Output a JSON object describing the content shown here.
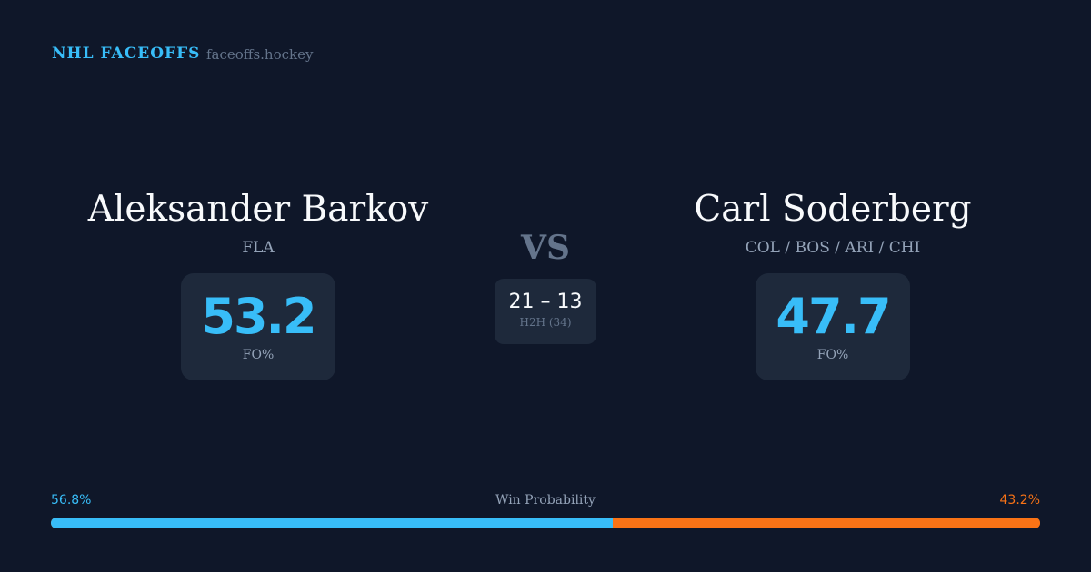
{
  "header": {
    "brand": "NHL FACEOFFS",
    "domain": "faceoffs.hockey"
  },
  "player1": {
    "name": "Aleksander Barkov",
    "team": "FLA",
    "fo_pct": "53.2",
    "fo_label": "FO%"
  },
  "player2": {
    "name": "Carl Soderberg",
    "team": "COL / BOS / ARI / CHI",
    "fo_pct": "47.7",
    "fo_label": "FO%"
  },
  "versus": {
    "label": "VS",
    "h2h_score": "21 – 13",
    "h2h_label": "H2H (34)"
  },
  "win_probability": {
    "label": "Win Probability",
    "player1_text": "56.8%",
    "player2_text": "43.2%",
    "player1_value": 56.8,
    "player2_value": 43.2,
    "player1_color": "#38bdf8",
    "player2_color": "#f97316"
  }
}
